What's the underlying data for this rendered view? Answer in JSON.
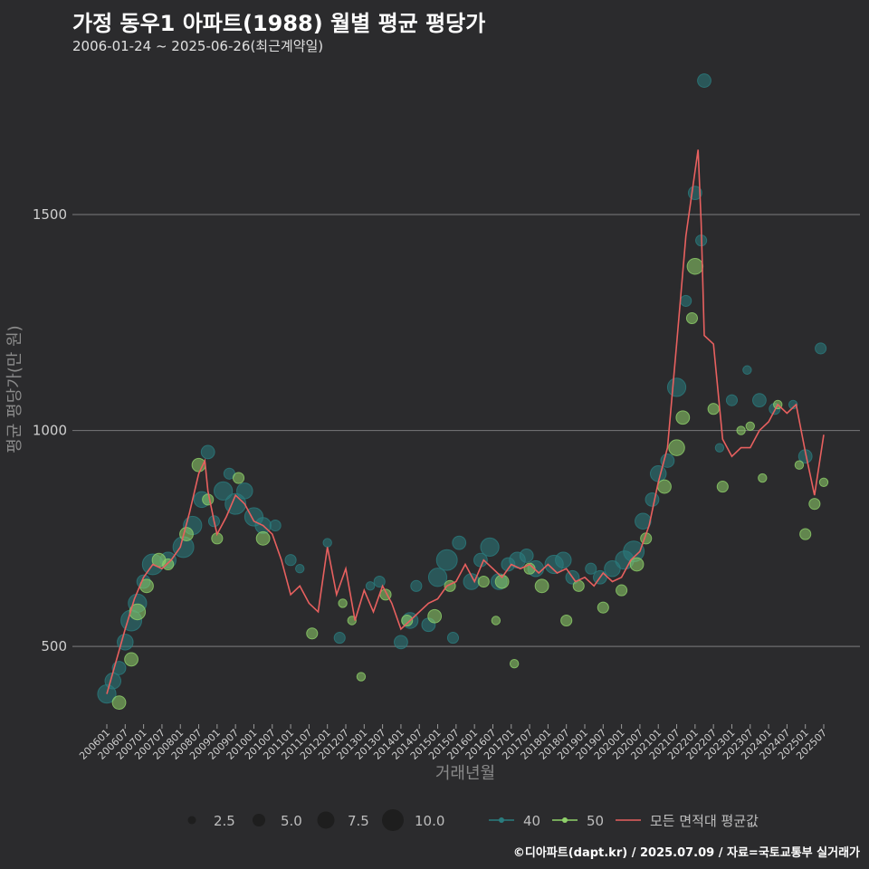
{
  "header": {
    "title": "가정 동우1 아파트(1988) 월별 평균 평당가",
    "subtitle": "2006-01-24 ~ 2025-06-26(최근계약일)"
  },
  "footer": {
    "credit": "©디아파트(dapt.kr) / 2025.07.09 / 자료=국토교통부 실거래가"
  },
  "colors": {
    "background": "#2b2b2d",
    "grid": "#6e6e70",
    "series_40": "#2a7c7e",
    "series_50": "#8fd16a",
    "avg_line": "#e8605f"
  },
  "chart_data": {
    "type": "line",
    "title": "가정 동우1 아파트(1988) 월별 평균 평당가",
    "xlabel": "거래년월",
    "ylabel": "평균 평당가(만 원)",
    "ylim": [
      320,
      1850
    ],
    "yticks": [
      500,
      1000,
      1500
    ],
    "xticks": [
      "200601",
      "200607",
      "200701",
      "200707",
      "200801",
      "200807",
      "200901",
      "200907",
      "201001",
      "201007",
      "201101",
      "201107",
      "201201",
      "201207",
      "201301",
      "201307",
      "201401",
      "201407",
      "201501",
      "201507",
      "201601",
      "201607",
      "201701",
      "201707",
      "201801",
      "201807",
      "201901",
      "201907",
      "202001",
      "202007",
      "202101",
      "202107",
      "202201",
      "202207",
      "202301",
      "202307",
      "202401",
      "202407",
      "202501",
      "202507"
    ],
    "grid": "horizontal",
    "legend": {
      "size_title": "",
      "size_entries": [
        {
          "label": "2.5",
          "size": 2.5
        },
        {
          "label": "5.0",
          "size": 5.0
        },
        {
          "label": "7.5",
          "size": 7.5
        },
        {
          "label": "10.0",
          "size": 10.0
        }
      ],
      "series_entries": [
        {
          "label": "40",
          "key": "series_40"
        },
        {
          "label": "50",
          "key": "series_50"
        },
        {
          "label": "모든 면적대 평균값",
          "key": "avg_line"
        }
      ],
      "placement": "bottom"
    },
    "avg_line": {
      "name": "모든 면적대 평균값",
      "x": [
        "200601",
        "200603",
        "200607",
        "200610",
        "200701",
        "200704",
        "200707",
        "200710",
        "200801",
        "200804",
        "200807",
        "200809",
        "200810",
        "200812",
        "200901",
        "200904",
        "200907",
        "200910",
        "201001",
        "201004",
        "201007",
        "201010",
        "201101",
        "201104",
        "201107",
        "201110",
        "201201",
        "201204",
        "201207",
        "201210",
        "201301",
        "201304",
        "201307",
        "201310",
        "201401",
        "201404",
        "201407",
        "201410",
        "201501",
        "201504",
        "201507",
        "201510",
        "201601",
        "201604",
        "201607",
        "201610",
        "201701",
        "201704",
        "201707",
        "201710",
        "201801",
        "201804",
        "201807",
        "201810",
        "201901",
        "201904",
        "201907",
        "201910",
        "202001",
        "202004",
        "202007",
        "202010",
        "202101",
        "202104",
        "202107",
        "202110",
        "202201",
        "202202",
        "202203",
        "202204",
        "202207",
        "202210",
        "202301",
        "202304",
        "202307",
        "202310",
        "202401",
        "202404",
        "202407",
        "202410",
        "202501",
        "202504",
        "202507"
      ],
      "y": [
        390,
        440,
        540,
        610,
        660,
        690,
        680,
        700,
        730,
        810,
        900,
        930,
        860,
        790,
        760,
        800,
        850,
        830,
        790,
        780,
        760,
        700,
        620,
        640,
        600,
        580,
        730,
        620,
        680,
        560,
        630,
        580,
        640,
        600,
        540,
        560,
        580,
        600,
        610,
        640,
        650,
        690,
        650,
        700,
        680,
        660,
        690,
        680,
        690,
        670,
        690,
        670,
        680,
        650,
        660,
        640,
        670,
        650,
        660,
        700,
        720,
        780,
        880,
        960,
        1200,
        1450,
        1600,
        1650,
        1480,
        1220,
        1200,
        980,
        940,
        960,
        960,
        1000,
        1020,
        1060,
        1040,
        1060,
        950,
        850,
        990
      ]
    },
    "series": [
      {
        "name": "40",
        "points": [
          {
            "x": "200601",
            "y": 390,
            "size": 6
          },
          {
            "x": "200603",
            "y": 420,
            "size": 5
          },
          {
            "x": "200605",
            "y": 450,
            "size": 4
          },
          {
            "x": "200607",
            "y": 510,
            "size": 5
          },
          {
            "x": "200609",
            "y": 560,
            "size": 7
          },
          {
            "x": "200611",
            "y": 600,
            "size": 6
          },
          {
            "x": "200701",
            "y": 650,
            "size": 4
          },
          {
            "x": "200704",
            "y": 690,
            "size": 7
          },
          {
            "x": "200709",
            "y": 700,
            "size": 5
          },
          {
            "x": "200802",
            "y": 730,
            "size": 7
          },
          {
            "x": "200805",
            "y": 780,
            "size": 6
          },
          {
            "x": "200808",
            "y": 840,
            "size": 5
          },
          {
            "x": "200810",
            "y": 950,
            "size": 4
          },
          {
            "x": "200812",
            "y": 790,
            "size": 3
          },
          {
            "x": "200903",
            "y": 860,
            "size": 6
          },
          {
            "x": "200905",
            "y": 900,
            "size": 3
          },
          {
            "x": "200907",
            "y": 830,
            "size": 7
          },
          {
            "x": "200910",
            "y": 860,
            "size": 5
          },
          {
            "x": "201001",
            "y": 800,
            "size": 6
          },
          {
            "x": "201004",
            "y": 780,
            "size": 5
          },
          {
            "x": "201008",
            "y": 780,
            "size": 3
          },
          {
            "x": "201101",
            "y": 700,
            "size": 3
          },
          {
            "x": "201104",
            "y": 680,
            "size": 2
          },
          {
            "x": "201201",
            "y": 740,
            "size": 2
          },
          {
            "x": "201205",
            "y": 520,
            "size": 3
          },
          {
            "x": "201303",
            "y": 640,
            "size": 2
          },
          {
            "x": "201306",
            "y": 650,
            "size": 3
          },
          {
            "x": "201401",
            "y": 510,
            "size": 4
          },
          {
            "x": "201404",
            "y": 560,
            "size": 5
          },
          {
            "x": "201406",
            "y": 640,
            "size": 3
          },
          {
            "x": "201410",
            "y": 550,
            "size": 4
          },
          {
            "x": "201501",
            "y": 660,
            "size": 6
          },
          {
            "x": "201504",
            "y": 700,
            "size": 7
          },
          {
            "x": "201506",
            "y": 520,
            "size": 3
          },
          {
            "x": "201508",
            "y": 740,
            "size": 4
          },
          {
            "x": "201512",
            "y": 650,
            "size": 5
          },
          {
            "x": "201603",
            "y": 700,
            "size": 4
          },
          {
            "x": "201606",
            "y": 730,
            "size": 6
          },
          {
            "x": "201609",
            "y": 650,
            "size": 5
          },
          {
            "x": "201612",
            "y": 690,
            "size": 4
          },
          {
            "x": "201703",
            "y": 700,
            "size": 5
          },
          {
            "x": "201706",
            "y": 710,
            "size": 4
          },
          {
            "x": "201709",
            "y": 680,
            "size": 5
          },
          {
            "x": "201803",
            "y": 690,
            "size": 6
          },
          {
            "x": "201806",
            "y": 700,
            "size": 5
          },
          {
            "x": "201809",
            "y": 660,
            "size": 4
          },
          {
            "x": "201903",
            "y": 680,
            "size": 3
          },
          {
            "x": "201906",
            "y": 660,
            "size": 4
          },
          {
            "x": "201910",
            "y": 680,
            "size": 5
          },
          {
            "x": "202002",
            "y": 700,
            "size": 6
          },
          {
            "x": "202005",
            "y": 720,
            "size": 7
          },
          {
            "x": "202008",
            "y": 790,
            "size": 5
          },
          {
            "x": "202011",
            "y": 840,
            "size": 4
          },
          {
            "x": "202101",
            "y": 900,
            "size": 5
          },
          {
            "x": "202104",
            "y": 930,
            "size": 4
          },
          {
            "x": "202107",
            "y": 1100,
            "size": 6
          },
          {
            "x": "202110",
            "y": 1300,
            "size": 3
          },
          {
            "x": "202201",
            "y": 1550,
            "size": 4
          },
          {
            "x": "202203",
            "y": 1440,
            "size": 3
          },
          {
            "x": "202204",
            "y": 1810,
            "size": 4
          },
          {
            "x": "202209",
            "y": 960,
            "size": 2
          },
          {
            "x": "202301",
            "y": 1070,
            "size": 3
          },
          {
            "x": "202306",
            "y": 1140,
            "size": 2
          },
          {
            "x": "202310",
            "y": 1070,
            "size": 4
          },
          {
            "x": "202403",
            "y": 1050,
            "size": 3
          },
          {
            "x": "202409",
            "y": 1060,
            "size": 2
          },
          {
            "x": "202501",
            "y": 940,
            "size": 4
          },
          {
            "x": "202506",
            "y": 1190,
            "size": 3
          }
        ]
      },
      {
        "name": "50",
        "points": [
          {
            "x": "200605",
            "y": 370,
            "size": 4
          },
          {
            "x": "200609",
            "y": 470,
            "size": 4
          },
          {
            "x": "200611",
            "y": 580,
            "size": 5
          },
          {
            "x": "200702",
            "y": 640,
            "size": 4
          },
          {
            "x": "200706",
            "y": 700,
            "size": 4
          },
          {
            "x": "200709",
            "y": 690,
            "size": 3
          },
          {
            "x": "200803",
            "y": 760,
            "size": 4
          },
          {
            "x": "200807",
            "y": 920,
            "size": 4
          },
          {
            "x": "200810",
            "y": 840,
            "size": 3
          },
          {
            "x": "200901",
            "y": 750,
            "size": 3
          },
          {
            "x": "200908",
            "y": 890,
            "size": 3
          },
          {
            "x": "201004",
            "y": 750,
            "size": 4
          },
          {
            "x": "201108",
            "y": 530,
            "size": 3
          },
          {
            "x": "201206",
            "y": 600,
            "size": 2
          },
          {
            "x": "201209",
            "y": 560,
            "size": 2
          },
          {
            "x": "201212",
            "y": 430,
            "size": 2
          },
          {
            "x": "201308",
            "y": 620,
            "size": 3
          },
          {
            "x": "201403",
            "y": 560,
            "size": 3
          },
          {
            "x": "201412",
            "y": 570,
            "size": 4
          },
          {
            "x": "201505",
            "y": 640,
            "size": 3
          },
          {
            "x": "201604",
            "y": 650,
            "size": 3
          },
          {
            "x": "201608",
            "y": 560,
            "size": 2
          },
          {
            "x": "201610",
            "y": 650,
            "size": 4
          },
          {
            "x": "201702",
            "y": 460,
            "size": 2
          },
          {
            "x": "201707",
            "y": 680,
            "size": 3
          },
          {
            "x": "201711",
            "y": 640,
            "size": 4
          },
          {
            "x": "201807",
            "y": 560,
            "size": 3
          },
          {
            "x": "201811",
            "y": 640,
            "size": 3
          },
          {
            "x": "201907",
            "y": 590,
            "size": 3
          },
          {
            "x": "202001",
            "y": 630,
            "size": 3
          },
          {
            "x": "202006",
            "y": 690,
            "size": 4
          },
          {
            "x": "202009",
            "y": 750,
            "size": 3
          },
          {
            "x": "202103",
            "y": 870,
            "size": 4
          },
          {
            "x": "202107",
            "y": 960,
            "size": 5
          },
          {
            "x": "202109",
            "y": 1030,
            "size": 4
          },
          {
            "x": "202112",
            "y": 1260,
            "size": 3
          },
          {
            "x": "202201",
            "y": 1380,
            "size": 5
          },
          {
            "x": "202207",
            "y": 1050,
            "size": 3
          },
          {
            "x": "202210",
            "y": 870,
            "size": 3
          },
          {
            "x": "202304",
            "y": 1000,
            "size": 2
          },
          {
            "x": "202307",
            "y": 1010,
            "size": 2
          },
          {
            "x": "202311",
            "y": 890,
            "size": 2
          },
          {
            "x": "202404",
            "y": 1060,
            "size": 2
          },
          {
            "x": "202411",
            "y": 920,
            "size": 2
          },
          {
            "x": "202501",
            "y": 760,
            "size": 3
          },
          {
            "x": "202504",
            "y": 830,
            "size": 3
          },
          {
            "x": "202507",
            "y": 880,
            "size": 2
          }
        ]
      }
    ]
  }
}
